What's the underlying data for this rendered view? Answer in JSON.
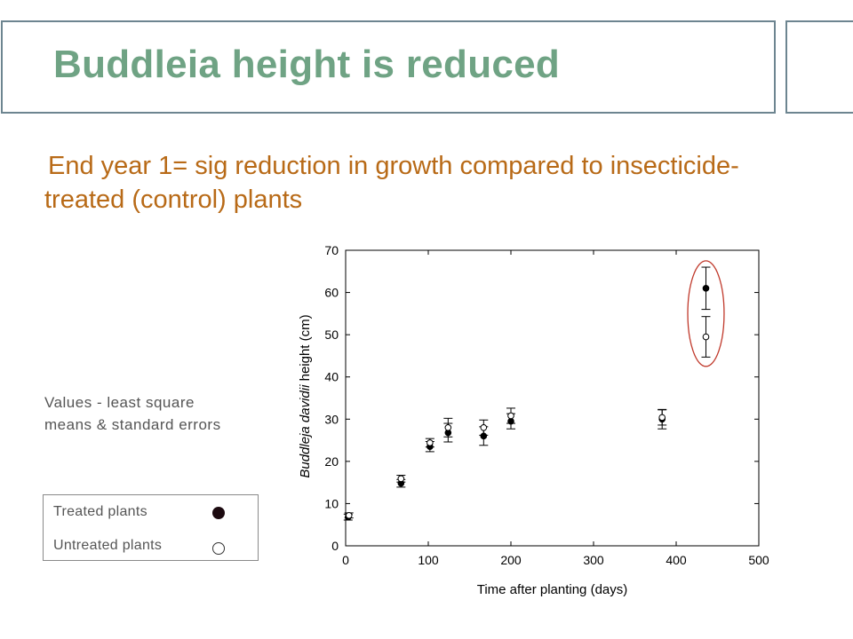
{
  "slide": {
    "title": "Buddleia height is reduced",
    "subtitle": "End year 1= sig reduction in growth compared to insecticide-treated (control) plants",
    "note": "Values - least square means & standard errors"
  },
  "legend": {
    "items": [
      {
        "label": "Treated plants",
        "marker": "filled-circle"
      },
      {
        "label": "Untreated plants",
        "marker": "open-circle"
      }
    ]
  },
  "colors": {
    "title": "#6fa384",
    "subtitle": "#b86a17",
    "frame": "#6d8590",
    "highlight": "#c0392b",
    "marker": "#000000"
  },
  "chart_data": {
    "type": "scatter",
    "xlabel": "Time after planting (days)",
    "ylabel_italic": "Buddleja davidii",
    "ylabel_rest": " height (cm)",
    "xlim": [
      0,
      500
    ],
    "ylim": [
      0,
      70
    ],
    "xticks": [
      0,
      100,
      200,
      300,
      400,
      500
    ],
    "yticks": [
      0,
      10,
      20,
      30,
      40,
      50,
      60,
      70
    ],
    "grid": false,
    "series": [
      {
        "name": "Treated plants",
        "marker": "filled",
        "points": [
          {
            "x": 3,
            "y": 6.8,
            "err": 0.7
          },
          {
            "x": 67,
            "y": 14.8,
            "err": 0.9
          },
          {
            "x": 102,
            "y": 23.5,
            "err": 1.2
          },
          {
            "x": 124,
            "y": 26.8,
            "err": 2.2
          },
          {
            "x": 167,
            "y": 26.0,
            "err": 2.2
          },
          {
            "x": 200,
            "y": 29.5,
            "err": 1.8
          },
          {
            "x": 383,
            "y": 30.0,
            "err": 2.3
          },
          {
            "x": 436,
            "y": 61.0,
            "err": 5.0
          }
        ]
      },
      {
        "name": "Untreated plants",
        "marker": "open",
        "points": [
          {
            "x": 4,
            "y": 7.2,
            "err": 0.6
          },
          {
            "x": 67,
            "y": 15.9,
            "err": 0.8
          },
          {
            "x": 102,
            "y": 24.4,
            "err": 1.0
          },
          {
            "x": 124,
            "y": 28.0,
            "err": 2.2
          },
          {
            "x": 167,
            "y": 28.0,
            "err": 1.8
          },
          {
            "x": 200,
            "y": 30.8,
            "err": 1.8
          },
          {
            "x": 383,
            "y": 30.4,
            "err": 1.8
          },
          {
            "x": 436,
            "y": 49.5,
            "err": 4.8
          }
        ]
      }
    ],
    "annotation": {
      "shape": "ellipse",
      "cx": 436,
      "cy": 55,
      "rx": 22,
      "ry": 12.5
    }
  }
}
